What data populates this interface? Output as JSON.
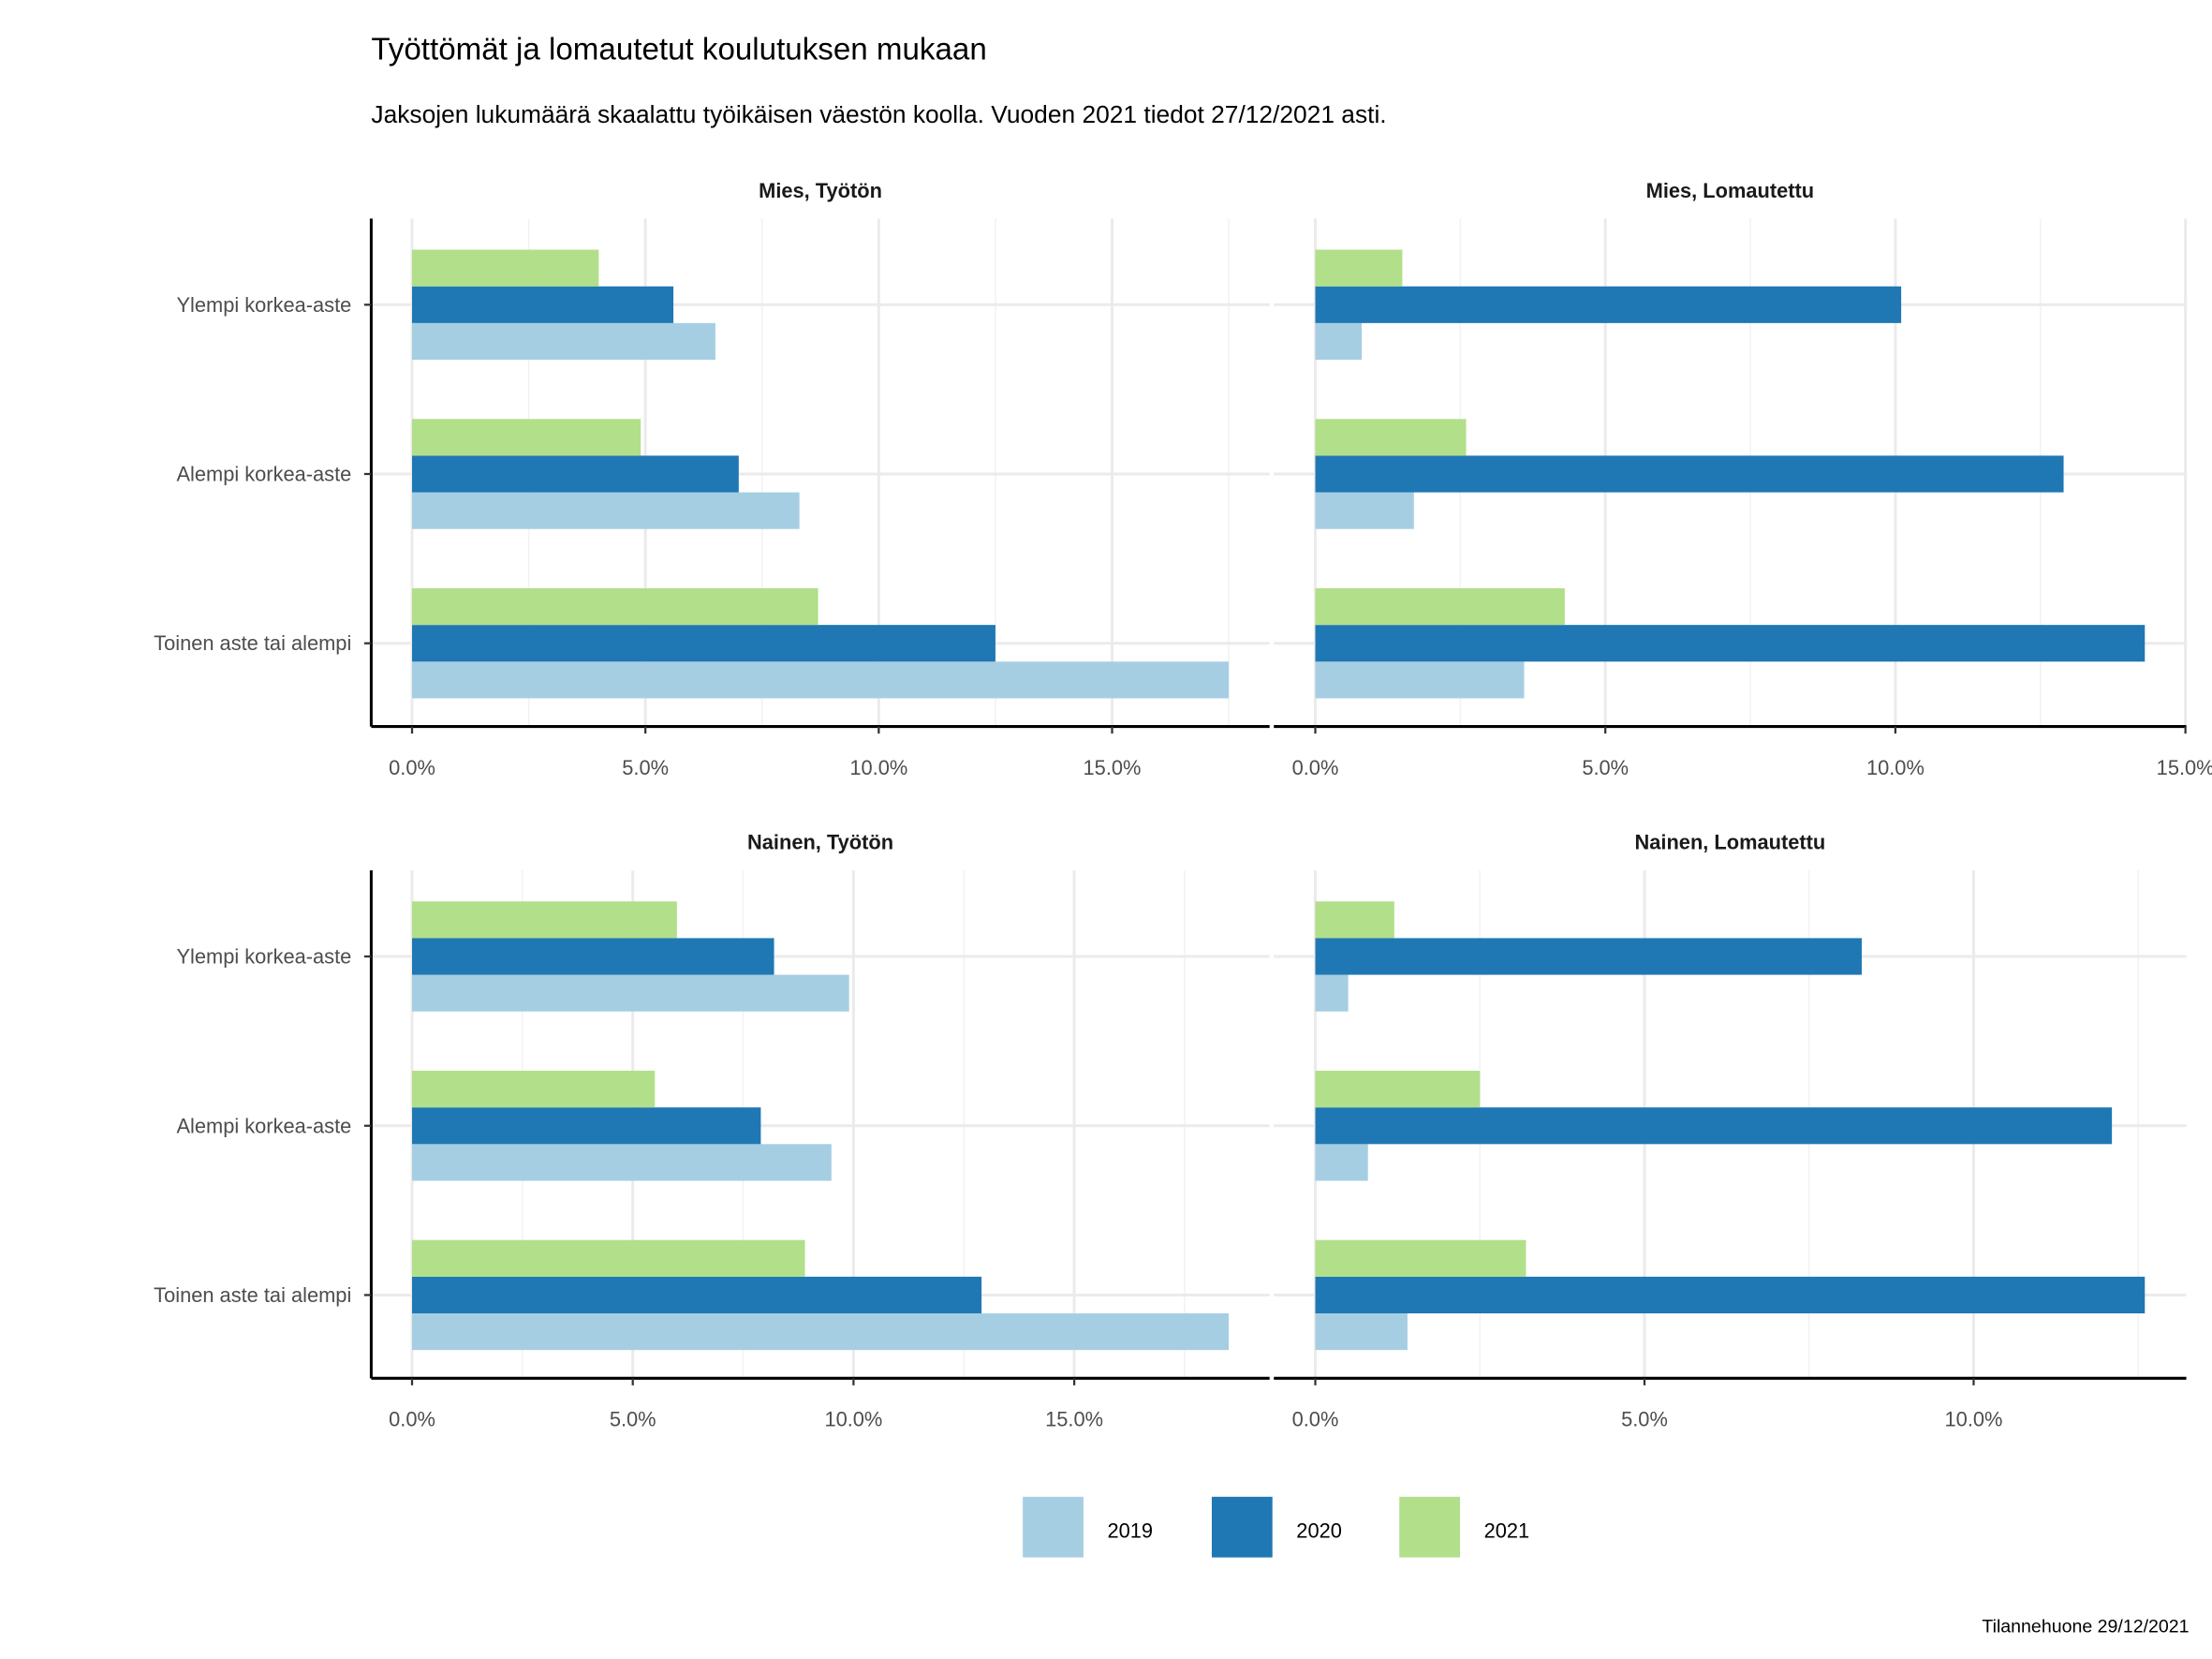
{
  "title": "Työttömät ja lomautetut koulutuksen mukaan",
  "subtitle": "Jaksojen lukumäärä skaalattu työikäisen väestön koolla. Vuoden 2021 tiedot 27/12/2021 asti.",
  "caption": "Tilannehuone 29/12/2021",
  "legend": {
    "items": [
      {
        "label": "2019",
        "color": "#A6CEE3"
      },
      {
        "label": "2020",
        "color": "#1F78B4"
      },
      {
        "label": "2021",
        "color": "#B2DF8A"
      }
    ]
  },
  "chart_data": [
    {
      "type": "bar",
      "orientation": "horizontal",
      "title": "Mies, Työtön",
      "categories": [
        "Ylempi korkea-aste",
        "Alempi korkea-aste",
        "Toinen aste tai alempi"
      ],
      "series": [
        {
          "name": "2019",
          "values": [
            6.5,
            8.3,
            17.5
          ]
        },
        {
          "name": "2020",
          "values": [
            5.6,
            7.0,
            12.5
          ]
        },
        {
          "name": "2021",
          "values": [
            4.0,
            4.9,
            8.7
          ]
        }
      ],
      "xlim": [
        0,
        17.5
      ],
      "xticks": [
        "0.0%",
        "5.0%",
        "10.0%",
        "15.0%"
      ],
      "grid": true
    },
    {
      "type": "bar",
      "orientation": "horizontal",
      "title": "Mies, Lomautettu",
      "categories": [
        "Ylempi korkea-aste",
        "Alempi korkea-aste",
        "Toinen aste tai alempi"
      ],
      "series": [
        {
          "name": "2019",
          "values": [
            0.8,
            1.7,
            3.6
          ]
        },
        {
          "name": "2020",
          "values": [
            10.1,
            12.9,
            14.3
          ]
        },
        {
          "name": "2021",
          "values": [
            1.5,
            2.6,
            4.3
          ]
        }
      ],
      "xlim": [
        0,
        14.3
      ],
      "xticks": [
        "0.0%",
        "5.0%",
        "10.0%",
        "15.0%"
      ],
      "grid": true
    },
    {
      "type": "bar",
      "orientation": "horizontal",
      "title": "Nainen, Työtön",
      "categories": [
        "Ylempi korkea-aste",
        "Alempi korkea-aste",
        "Toinen aste tai alempi"
      ],
      "series": [
        {
          "name": "2019",
          "values": [
            9.9,
            9.5,
            18.5
          ]
        },
        {
          "name": "2020",
          "values": [
            8.2,
            7.9,
            12.9
          ]
        },
        {
          "name": "2021",
          "values": [
            6.0,
            5.5,
            8.9
          ]
        }
      ],
      "xlim": [
        0,
        18.5
      ],
      "xticks": [
        "0.0%",
        "5.0%",
        "10.0%",
        "15.0%"
      ],
      "grid": true
    },
    {
      "type": "bar",
      "orientation": "horizontal",
      "title": "Nainen, Lomautettu",
      "categories": [
        "Ylempi korkea-aste",
        "Alempi korkea-aste",
        "Toinen aste tai alempi"
      ],
      "series": [
        {
          "name": "2019",
          "values": [
            0.5,
            0.8,
            1.4
          ]
        },
        {
          "name": "2020",
          "values": [
            8.3,
            12.1,
            12.6
          ]
        },
        {
          "name": "2021",
          "values": [
            1.2,
            2.5,
            3.2
          ]
        }
      ],
      "xlim": [
        0,
        12.6
      ],
      "xticks": [
        "0.0%",
        "5.0%",
        "10.0%"
      ],
      "grid": true
    }
  ]
}
